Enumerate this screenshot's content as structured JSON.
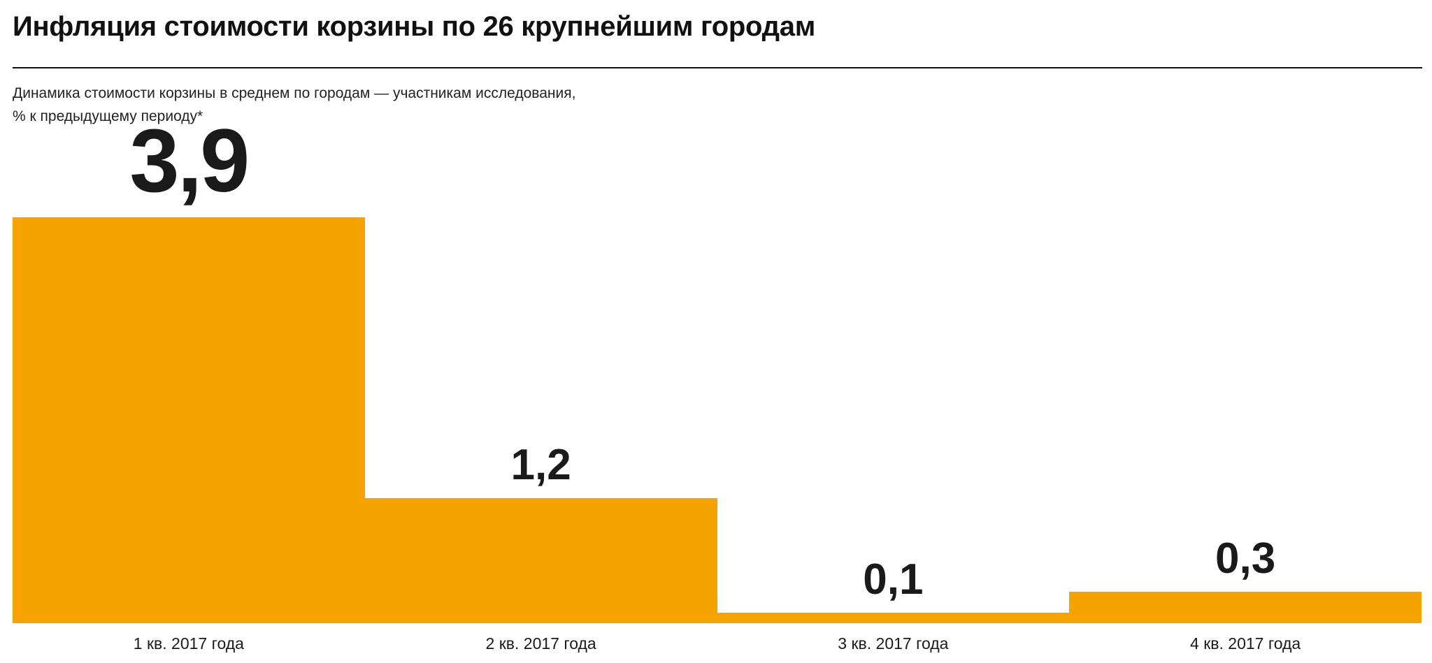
{
  "chart_data": {
    "type": "bar",
    "title": "Инфляция стоимости корзины по 26 крупнейшим городам",
    "subtitle_line1": "Динамика стоимости корзины в среднем по городам — участникам исследования,",
    "subtitle_line2": "% к предыдущему периоду*",
    "categories": [
      "1 кв. 2017 года",
      "2 кв. 2017 года",
      "3 кв. 2017 года",
      "4 кв. 2017 года"
    ],
    "values": [
      3.9,
      1.2,
      0.1,
      0.3
    ],
    "value_labels": [
      "3,9",
      "1,2",
      "0,1",
      "0,3"
    ],
    "xlabel": "",
    "ylabel": "",
    "ylim": [
      0,
      3.9
    ],
    "grid": false,
    "legend": "none",
    "bar_color": "#F6A200",
    "label_color": "#1A1A1A",
    "title_color": "#111111"
  }
}
